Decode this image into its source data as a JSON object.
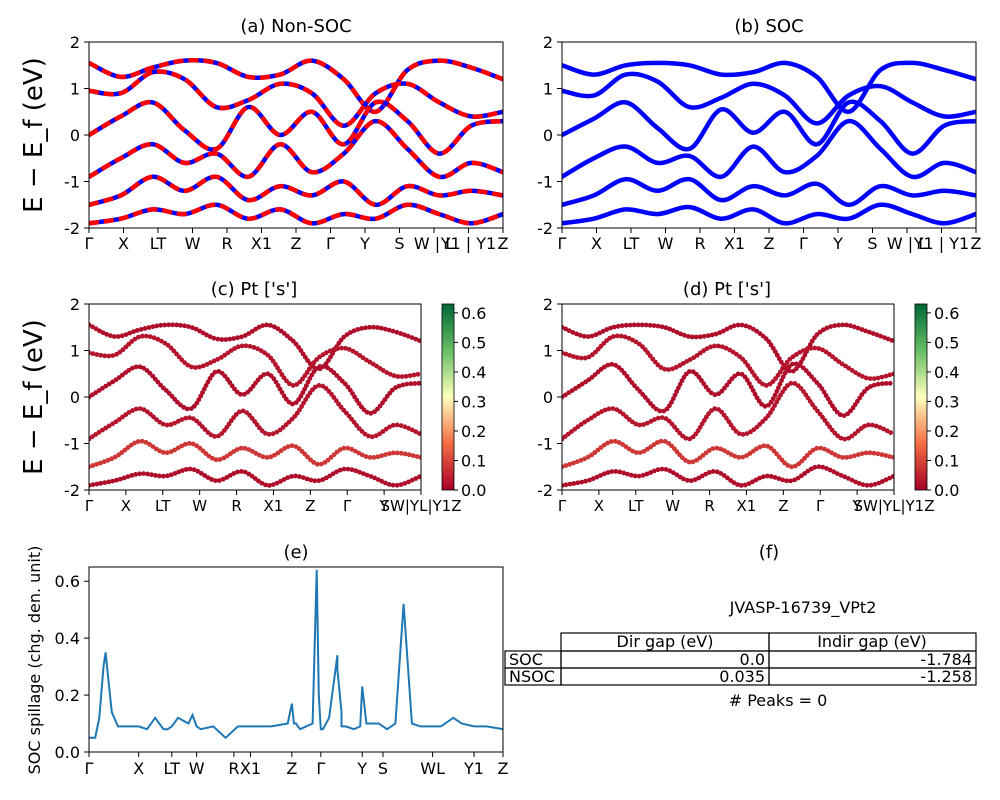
{
  "panels": {
    "a": {
      "title": "(a) Non-SOC",
      "ylabel": "E − E_f (eV)",
      "ylim": [
        -2,
        2
      ],
      "yticks": [
        -2,
        -1,
        0,
        1,
        2
      ],
      "xticks": [
        "Γ",
        "X",
        "LT",
        "W",
        "R",
        "X1",
        "Z",
        "Γ",
        "Y",
        "S",
        "W | L",
        "Y1 | Y1",
        "Z"
      ],
      "series_colors": {
        "soc": "#0000ff",
        "nonsoc_dashed": "#ff0000"
      }
    },
    "b": {
      "title": "(b) SOC",
      "ylim": [
        -2,
        2
      ],
      "yticks": [
        -2,
        -1,
        0,
        1,
        2
      ],
      "xticks": [
        "Γ",
        "X",
        "LT",
        "W",
        "R",
        "X1",
        "Z",
        "Γ",
        "Y",
        "S",
        "W | L",
        "Y1 | Y1",
        "Z"
      ],
      "line_color": "#0000ff"
    },
    "c": {
      "title": "(c)  Pt ['s']",
      "ylabel": "E − E_f (eV)",
      "ylim": [
        -2,
        2
      ],
      "yticks": [
        -2,
        -1,
        0,
        1,
        2
      ],
      "xticks": [
        "Γ",
        "X",
        "LT",
        "W",
        "R",
        "X1",
        "Z",
        "Γ",
        "Y",
        "SW|YL|Y1Z"
      ],
      "colorbar": {
        "ticks": [
          "0.0",
          "0.1",
          "0.2",
          "0.3",
          "0.4",
          "0.5",
          "0.6"
        ],
        "min": 0,
        "max": 0.63
      }
    },
    "d": {
      "title": "(d) Pt ['s']",
      "ylim": [
        -2,
        2
      ],
      "yticks": [
        -2,
        -1,
        0,
        1,
        2
      ],
      "xticks": [
        "Γ",
        "X",
        "LT",
        "W",
        "R",
        "X1",
        "Z",
        "Γ",
        "Y",
        "SW|YL|Y1Z"
      ],
      "colorbar": {
        "ticks": [
          "0.0",
          "0.1",
          "0.2",
          "0.3",
          "0.4",
          "0.5",
          "0.6"
        ],
        "min": 0,
        "max": 0.63
      }
    },
    "e": {
      "title": "(e)",
      "ylabel": "SOC spillage (chg. den. unit)",
      "xticks": [
        "Γ",
        "X",
        "LT",
        "W",
        "R",
        "X1",
        "Z",
        "Γ",
        "Y",
        "S",
        "WL",
        "Y1",
        "Z"
      ],
      "yticks": [
        "0.0",
        "0.2",
        "0.4",
        "0.6"
      ],
      "line_color": "#1f77b4"
    },
    "f": {
      "title": "(f)",
      "material": "JVASP-16739_VPt2",
      "table": {
        "headers": [
          "Dir gap (eV)",
          "Indir gap (eV)"
        ],
        "rows": [
          {
            "label": "SOC",
            "dir": "0.0",
            "indir": "-1.784"
          },
          {
            "label": "NSOC",
            "dir": "0.035",
            "indir": "-1.258"
          }
        ]
      },
      "peaks": "# Peaks = 0"
    }
  },
  "chart_data": [
    {
      "type": "line",
      "title": "(a) Non-SOC",
      "ylabel": "E − E_f (eV)",
      "ylim": [
        -2,
        2
      ],
      "x_labels": [
        "Γ",
        "X",
        "LT",
        "W",
        "R",
        "X1",
        "Z",
        "Γ",
        "Y",
        "S",
        "W | L",
        "Y1 | Y1",
        "Z"
      ],
      "series": [
        {
          "values": [
            1.55,
            1.25,
            1.45,
            1.6,
            1.55,
            1.25,
            1.3,
            1.6,
            1.2,
            0.5,
            1.4,
            1.6,
            1.45,
            1.2
          ]
        },
        {
          "values": [
            0.95,
            0.9,
            1.35,
            1.2,
            0.6,
            0.75,
            1.1,
            0.9,
            0.2,
            0.9,
            1.1,
            0.7,
            0.4,
            0.5
          ]
        },
        {
          "values": [
            0.0,
            0.4,
            0.7,
            0.1,
            -0.3,
            0.6,
            0.0,
            0.5,
            -0.2,
            0.7,
            0.3,
            -0.4,
            0.2,
            0.3
          ]
        },
        {
          "values": [
            -0.9,
            -0.5,
            -0.2,
            -0.6,
            -0.4,
            -0.9,
            -0.2,
            -0.8,
            -0.4,
            0.3,
            -0.3,
            -0.9,
            -0.6,
            -0.8
          ]
        },
        {
          "values": [
            -1.5,
            -1.3,
            -0.9,
            -1.2,
            -0.9,
            -1.4,
            -1.1,
            -1.3,
            -1.0,
            -1.5,
            -1.1,
            -1.3,
            -1.2,
            -1.3
          ]
        },
        {
          "values": [
            -1.9,
            -1.8,
            -1.6,
            -1.7,
            -1.5,
            -1.8,
            -1.6,
            -1.9,
            -1.7,
            -1.8,
            -1.5,
            -1.7,
            -1.9,
            -1.7
          ]
        }
      ]
    },
    {
      "type": "line",
      "title": "(b) SOC",
      "ylim": [
        -2,
        2
      ],
      "x_labels": [
        "Γ",
        "X",
        "LT",
        "W",
        "R",
        "X1",
        "Z",
        "Γ",
        "Y",
        "S",
        "W | L",
        "Y1 | Y1",
        "Z"
      ],
      "series": [
        {
          "values": [
            1.5,
            1.3,
            1.5,
            1.55,
            1.5,
            1.3,
            1.35,
            1.55,
            1.25,
            0.5,
            1.4,
            1.55,
            1.4,
            1.2
          ]
        },
        {
          "values": [
            0.95,
            0.85,
            1.3,
            1.15,
            0.6,
            0.8,
            1.1,
            0.85,
            0.25,
            0.85,
            1.05,
            0.7,
            0.4,
            0.5
          ]
        },
        {
          "values": [
            0.0,
            0.35,
            0.7,
            0.15,
            -0.3,
            0.55,
            0.05,
            0.5,
            -0.2,
            0.7,
            0.3,
            -0.4,
            0.2,
            0.3
          ]
        },
        {
          "values": [
            -0.9,
            -0.5,
            -0.25,
            -0.6,
            -0.45,
            -0.9,
            -0.25,
            -0.8,
            -0.45,
            0.3,
            -0.3,
            -0.9,
            -0.6,
            -0.8
          ]
        },
        {
          "values": [
            -1.5,
            -1.3,
            -0.95,
            -1.2,
            -0.95,
            -1.4,
            -1.1,
            -1.3,
            -1.05,
            -1.5,
            -1.1,
            -1.3,
            -1.2,
            -1.3
          ]
        },
        {
          "values": [
            -1.9,
            -1.8,
            -1.6,
            -1.7,
            -1.55,
            -1.8,
            -1.6,
            -1.9,
            -1.7,
            -1.8,
            -1.5,
            -1.7,
            -1.9,
            -1.7
          ]
        }
      ]
    },
    {
      "type": "scatter",
      "title": "(c)  Pt ['s']",
      "ylim": [
        -2,
        2
      ],
      "colorbar_range": [
        0,
        0.63
      ],
      "series": [
        {
          "values": [
            1.55,
            1.3,
            1.45,
            1.55,
            1.5,
            1.25,
            1.3,
            1.55,
            1.2,
            0.6,
            1.3,
            1.5,
            1.4,
            1.2
          ],
          "weight": 0.02
        },
        {
          "values": [
            0.95,
            0.9,
            1.3,
            1.15,
            0.65,
            0.8,
            1.1,
            0.9,
            0.25,
            0.85,
            1.05,
            0.75,
            0.45,
            0.5
          ],
          "weight": 0.03
        },
        {
          "values": [
            0.0,
            0.35,
            0.65,
            0.15,
            -0.25,
            0.55,
            0.05,
            0.5,
            -0.15,
            0.65,
            0.3,
            -0.35,
            0.2,
            0.3
          ],
          "weight": 0.02
        },
        {
          "values": [
            -0.9,
            -0.55,
            -0.25,
            -0.6,
            -0.45,
            -0.85,
            -0.3,
            -0.8,
            -0.45,
            0.25,
            -0.3,
            -0.85,
            -0.6,
            -0.8
          ],
          "weight": 0.03
        },
        {
          "values": [
            -1.5,
            -1.3,
            -0.95,
            -1.2,
            -1.0,
            -1.35,
            -1.1,
            -1.3,
            -1.05,
            -1.45,
            -1.1,
            -1.3,
            -1.2,
            -1.3
          ],
          "weight": 0.08
        },
        {
          "values": [
            -1.9,
            -1.8,
            -1.65,
            -1.7,
            -1.55,
            -1.8,
            -1.6,
            -1.9,
            -1.7,
            -1.8,
            -1.55,
            -1.7,
            -1.9,
            -1.7
          ],
          "weight": 0.02
        }
      ]
    },
    {
      "type": "scatter",
      "title": "(d) Pt ['s']",
      "ylim": [
        -2,
        2
      ],
      "colorbar_range": [
        0,
        0.63
      ],
      "series": [
        {
          "values": [
            1.5,
            1.3,
            1.5,
            1.55,
            1.5,
            1.3,
            1.35,
            1.55,
            1.25,
            0.55,
            1.35,
            1.55,
            1.4,
            1.2
          ],
          "weight": 0.02
        },
        {
          "values": [
            0.95,
            0.85,
            1.3,
            1.15,
            0.6,
            0.8,
            1.1,
            0.85,
            0.25,
            0.85,
            1.05,
            0.7,
            0.4,
            0.5
          ],
          "weight": 0.03
        },
        {
          "values": [
            0.0,
            0.35,
            0.7,
            0.15,
            -0.3,
            0.55,
            0.05,
            0.5,
            -0.2,
            0.7,
            0.3,
            -0.4,
            0.2,
            0.3
          ],
          "weight": 0.02
        },
        {
          "values": [
            -0.9,
            -0.5,
            -0.25,
            -0.6,
            -0.45,
            -0.9,
            -0.25,
            -0.8,
            -0.45,
            0.3,
            -0.3,
            -0.9,
            -0.6,
            -0.8
          ],
          "weight": 0.03
        },
        {
          "values": [
            -1.5,
            -1.3,
            -0.95,
            -1.2,
            -0.95,
            -1.4,
            -1.1,
            -1.3,
            -1.05,
            -1.5,
            -1.1,
            -1.3,
            -1.2,
            -1.3
          ],
          "weight": 0.08
        },
        {
          "values": [
            -1.9,
            -1.8,
            -1.6,
            -1.7,
            -1.55,
            -1.8,
            -1.6,
            -1.9,
            -1.7,
            -1.8,
            -1.5,
            -1.7,
            -1.9,
            -1.7
          ],
          "weight": 0.02
        }
      ]
    },
    {
      "type": "line",
      "title": "(e)",
      "ylabel": "SOC spillage (chg. den. unit)",
      "ylim": [
        0,
        0.65
      ],
      "xlim": [
        0,
        1
      ],
      "x": [
        0.0,
        0.015,
        0.025,
        0.035,
        0.04,
        0.045,
        0.055,
        0.07,
        0.085,
        0.1,
        0.12,
        0.14,
        0.16,
        0.175,
        0.18,
        0.19,
        0.2,
        0.215,
        0.24,
        0.25,
        0.26,
        0.27,
        0.3,
        0.33,
        0.36,
        0.38,
        0.4,
        0.44,
        0.48,
        0.49,
        0.495,
        0.5,
        0.51,
        0.54,
        0.55,
        0.555,
        0.56,
        0.565,
        0.58,
        0.6,
        0.6,
        0.61,
        0.61,
        0.62,
        0.64,
        0.655,
        0.66,
        0.67,
        0.7,
        0.72,
        0.74,
        0.76,
        0.78,
        0.8,
        0.83,
        0.85,
        0.88,
        0.9,
        0.93,
        0.96,
        1.0
      ],
      "y": [
        0.05,
        0.05,
        0.12,
        0.3,
        0.35,
        0.28,
        0.14,
        0.09,
        0.09,
        0.09,
        0.09,
        0.08,
        0.12,
        0.09,
        0.08,
        0.08,
        0.09,
        0.12,
        0.1,
        0.13,
        0.09,
        0.08,
        0.09,
        0.05,
        0.09,
        0.09,
        0.09,
        0.09,
        0.1,
        0.17,
        0.1,
        0.1,
        0.08,
        0.1,
        0.64,
        0.2,
        0.08,
        0.08,
        0.12,
        0.34,
        0.29,
        0.14,
        0.09,
        0.09,
        0.08,
        0.09,
        0.23,
        0.1,
        0.1,
        0.08,
        0.1,
        0.52,
        0.1,
        0.09,
        0.09,
        0.09,
        0.12,
        0.1,
        0.09,
        0.09,
        0.08
      ]
    }
  ]
}
